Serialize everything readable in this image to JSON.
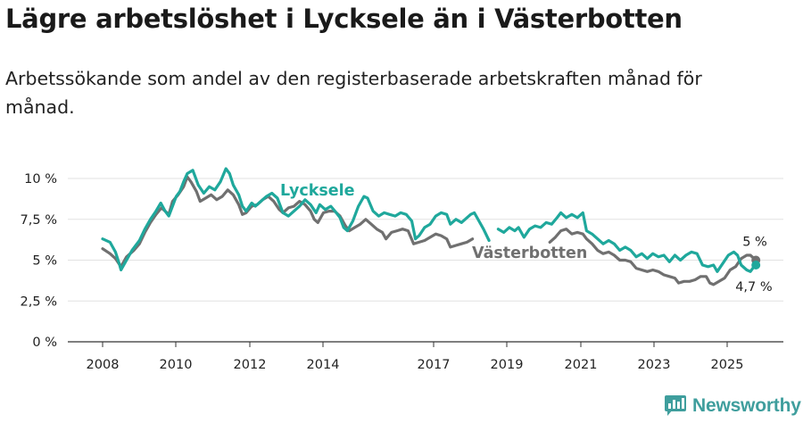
{
  "header": {
    "title": "Lägre arbetslöshet i Lycksele än i Västerbotten",
    "subtitle": "Arbetssökande som andel av den registerbaserade arbetskraften månad för månad."
  },
  "brand": {
    "name": "Newsworthy"
  },
  "chart_data": {
    "type": "line",
    "title": "Lägre arbetslöshet i Lycksele än i Västerbotten",
    "subtitle": "Arbetssökande som andel av den registerbaserade arbetskraften månad för månad.",
    "xlabel": "",
    "ylabel": "",
    "ylim": [
      0,
      10
    ],
    "xlim": [
      2007.6,
      2026.65
    ],
    "y_ticks": [
      0,
      2.5,
      5,
      7.5,
      10
    ],
    "y_tick_labels": [
      "0 %",
      "2,5 %",
      "5 %",
      "7,5 %",
      "10 %"
    ],
    "x_tick_labels": [
      "2008",
      "2010",
      "2012",
      "2014",
      "2017",
      "2019",
      "2021",
      "2023",
      "2025"
    ],
    "grid": "horizontal",
    "series": [
      {
        "name": "Lycksele",
        "label": "Lycksele",
        "color": "#1fa89c",
        "end_label": "4,7 %",
        "points": [
          [
            2008.0,
            6.3
          ],
          [
            2008.2,
            6.1
          ],
          [
            2008.35,
            5.5
          ],
          [
            2008.45,
            4.8
          ],
          [
            2008.5,
            4.4
          ],
          [
            2008.6,
            4.8
          ],
          [
            2008.8,
            5.6
          ],
          [
            2009.0,
            6.2
          ],
          [
            2009.15,
            6.9
          ],
          [
            2009.3,
            7.5
          ],
          [
            2009.45,
            8.0
          ],
          [
            2009.58,
            8.5
          ],
          [
            2009.7,
            8.0
          ],
          [
            2009.8,
            7.7
          ],
          [
            2009.9,
            8.3
          ],
          [
            2010.0,
            8.9
          ],
          [
            2010.1,
            9.2
          ],
          [
            2010.2,
            9.8
          ],
          [
            2010.3,
            10.3
          ],
          [
            2010.45,
            10.5
          ],
          [
            2010.6,
            9.6
          ],
          [
            2010.75,
            9.1
          ],
          [
            2010.9,
            9.5
          ],
          [
            2011.05,
            9.3
          ],
          [
            2011.2,
            9.8
          ],
          [
            2011.35,
            10.6
          ],
          [
            2011.45,
            10.3
          ],
          [
            2011.55,
            9.6
          ],
          [
            2011.7,
            9.0
          ],
          [
            2011.8,
            8.3
          ],
          [
            2011.9,
            8.0
          ],
          [
            2012.05,
            8.5
          ],
          [
            2012.15,
            8.3
          ],
          [
            2012.3,
            8.6
          ],
          [
            2012.45,
            8.9
          ],
          [
            2012.6,
            9.1
          ],
          [
            2012.75,
            8.8
          ],
          [
            2012.9,
            7.9
          ],
          [
            2013.05,
            7.7
          ],
          [
            2013.2,
            8.0
          ],
          [
            2013.35,
            8.3
          ],
          [
            2013.5,
            8.7
          ],
          [
            2013.65,
            8.4
          ],
          [
            2013.8,
            7.9
          ],
          [
            2013.9,
            8.4
          ],
          [
            2014.05,
            8.1
          ],
          [
            2014.2,
            8.3
          ],
          [
            2014.35,
            7.9
          ],
          [
            2014.45,
            7.6
          ],
          [
            2014.55,
            7.0
          ],
          [
            2014.65,
            6.8
          ],
          [
            2014.8,
            7.4
          ],
          [
            2014.95,
            8.3
          ],
          [
            2015.1,
            8.9
          ],
          [
            2015.2,
            8.8
          ],
          [
            2015.35,
            8.0
          ],
          [
            2015.5,
            7.7
          ],
          [
            2015.65,
            7.9
          ],
          [
            2015.8,
            7.8
          ],
          [
            2015.95,
            7.7
          ],
          [
            2016.1,
            7.9
          ],
          [
            2016.25,
            7.8
          ],
          [
            2016.4,
            7.4
          ],
          [
            2016.5,
            6.3
          ],
          [
            2016.6,
            6.5
          ],
          [
            2016.75,
            7.0
          ],
          [
            2016.9,
            7.2
          ],
          [
            2017.05,
            7.7
          ],
          [
            2017.2,
            7.9
          ],
          [
            2017.35,
            7.8
          ],
          [
            2017.45,
            7.2
          ],
          [
            2017.6,
            7.5
          ],
          [
            2017.75,
            7.3
          ],
          [
            2017.9,
            7.6
          ],
          [
            2018.0,
            7.8
          ],
          [
            2018.1,
            7.9
          ],
          [
            2018.25,
            7.3
          ],
          [
            2018.35,
            6.9
          ],
          [
            2018.5,
            6.2
          ],
          [
            null,
            null
          ],
          [
            2018.75,
            6.9
          ],
          [
            2018.9,
            6.7
          ],
          [
            2019.05,
            7.0
          ],
          [
            2019.2,
            6.8
          ],
          [
            2019.3,
            7.0
          ],
          [
            2019.45,
            6.4
          ],
          [
            2019.6,
            6.9
          ],
          [
            2019.75,
            7.1
          ],
          [
            2019.9,
            7.0
          ],
          [
            2020.05,
            7.3
          ],
          [
            2020.2,
            7.2
          ],
          [
            2020.35,
            7.6
          ],
          [
            2020.45,
            7.9
          ],
          [
            2020.6,
            7.6
          ],
          [
            2020.75,
            7.8
          ],
          [
            2020.9,
            7.6
          ],
          [
            2021.05,
            7.9
          ],
          [
            2021.15,
            6.8
          ],
          [
            2021.3,
            6.6
          ],
          [
            2021.45,
            6.3
          ],
          [
            2021.6,
            6.0
          ],
          [
            2021.75,
            6.2
          ],
          [
            2021.9,
            6.0
          ],
          [
            2022.05,
            5.6
          ],
          [
            2022.2,
            5.8
          ],
          [
            2022.35,
            5.6
          ],
          [
            2022.5,
            5.2
          ],
          [
            2022.65,
            5.4
          ],
          [
            2022.8,
            5.1
          ],
          [
            2022.95,
            5.4
          ],
          [
            2023.1,
            5.2
          ],
          [
            2023.25,
            5.3
          ],
          [
            2023.4,
            4.9
          ],
          [
            2023.55,
            5.3
          ],
          [
            2023.7,
            5.0
          ],
          [
            2023.85,
            5.3
          ],
          [
            2024.0,
            5.5
          ],
          [
            2024.15,
            5.4
          ],
          [
            2024.3,
            4.7
          ],
          [
            2024.45,
            4.6
          ],
          [
            2024.6,
            4.7
          ],
          [
            2024.7,
            4.3
          ],
          [
            2024.85,
            4.8
          ],
          [
            2025.0,
            5.3
          ],
          [
            2025.15,
            5.5
          ],
          [
            2025.25,
            5.3
          ],
          [
            2025.35,
            4.7
          ],
          [
            2025.5,
            4.4
          ],
          [
            2025.6,
            4.3
          ],
          [
            2025.7,
            4.6
          ],
          [
            2025.75,
            4.7
          ]
        ]
      },
      {
        "name": "Västerbotten",
        "label": "Västerbotten",
        "color": "#707070",
        "end_label": "5 %",
        "points": [
          [
            2008.0,
            5.7
          ],
          [
            2008.2,
            5.4
          ],
          [
            2008.35,
            5.1
          ],
          [
            2008.5,
            4.6
          ],
          [
            2008.65,
            5.2
          ],
          [
            2008.85,
            5.6
          ],
          [
            2009.0,
            6.0
          ],
          [
            2009.15,
            6.7
          ],
          [
            2009.3,
            7.3
          ],
          [
            2009.45,
            7.8
          ],
          [
            2009.6,
            8.2
          ],
          [
            2009.8,
            7.8
          ],
          [
            2009.9,
            8.6
          ],
          [
            2010.05,
            9.0
          ],
          [
            2010.2,
            9.5
          ],
          [
            2010.3,
            10.1
          ],
          [
            2010.4,
            9.8
          ],
          [
            2010.55,
            9.2
          ],
          [
            2010.65,
            8.6
          ],
          [
            2010.8,
            8.8
          ],
          [
            2010.95,
            9.0
          ],
          [
            2011.1,
            8.7
          ],
          [
            2011.25,
            8.9
          ],
          [
            2011.4,
            9.3
          ],
          [
            2011.55,
            9.0
          ],
          [
            2011.7,
            8.4
          ],
          [
            2011.8,
            7.8
          ],
          [
            2011.9,
            7.9
          ],
          [
            2012.05,
            8.3
          ],
          [
            2012.2,
            8.4
          ],
          [
            2012.35,
            8.7
          ],
          [
            2012.5,
            8.9
          ],
          [
            2012.65,
            8.6
          ],
          [
            2012.8,
            8.1
          ],
          [
            2012.9,
            7.9
          ],
          [
            2013.05,
            8.2
          ],
          [
            2013.2,
            8.3
          ],
          [
            2013.35,
            8.6
          ],
          [
            2013.5,
            8.4
          ],
          [
            2013.65,
            8.0
          ],
          [
            2013.75,
            7.5
          ],
          [
            2013.85,
            7.3
          ],
          [
            2014.0,
            7.9
          ],
          [
            2014.15,
            8.0
          ],
          [
            2014.3,
            8.0
          ],
          [
            2014.45,
            7.7
          ],
          [
            2014.6,
            7.1
          ],
          [
            2014.7,
            6.8
          ],
          [
            2014.85,
            7.0
          ],
          [
            2015.0,
            7.2
          ],
          [
            2015.15,
            7.5
          ],
          [
            2015.3,
            7.2
          ],
          [
            2015.45,
            6.9
          ],
          [
            2015.6,
            6.7
          ],
          [
            2015.7,
            6.3
          ],
          [
            2015.85,
            6.7
          ],
          [
            2016.0,
            6.8
          ],
          [
            2016.15,
            6.9
          ],
          [
            2016.3,
            6.8
          ],
          [
            2016.45,
            6.0
          ],
          [
            2016.6,
            6.1
          ],
          [
            2016.75,
            6.2
          ],
          [
            2016.9,
            6.4
          ],
          [
            2017.05,
            6.6
          ],
          [
            2017.2,
            6.5
          ],
          [
            2017.35,
            6.3
          ],
          [
            2017.45,
            5.8
          ],
          [
            2017.6,
            5.9
          ],
          [
            2017.75,
            6.0
          ],
          [
            2017.9,
            6.1
          ],
          [
            2018.05,
            6.3
          ],
          [
            null,
            null
          ],
          [
            2020.15,
            6.1
          ],
          [
            2020.3,
            6.4
          ],
          [
            2020.45,
            6.8
          ],
          [
            2020.6,
            6.9
          ],
          [
            2020.75,
            6.6
          ],
          [
            2020.9,
            6.7
          ],
          [
            2021.05,
            6.6
          ],
          [
            2021.15,
            6.3
          ],
          [
            2021.3,
            6.0
          ],
          [
            2021.45,
            5.6
          ],
          [
            2021.6,
            5.4
          ],
          [
            2021.75,
            5.5
          ],
          [
            2021.9,
            5.3
          ],
          [
            2022.05,
            5.0
          ],
          [
            2022.2,
            5.0
          ],
          [
            2022.35,
            4.9
          ],
          [
            2022.5,
            4.5
          ],
          [
            2022.65,
            4.4
          ],
          [
            2022.8,
            4.3
          ],
          [
            2022.95,
            4.4
          ],
          [
            2023.1,
            4.3
          ],
          [
            2023.25,
            4.1
          ],
          [
            2023.4,
            4.0
          ],
          [
            2023.55,
            3.9
          ],
          [
            2023.65,
            3.6
          ],
          [
            2023.8,
            3.7
          ],
          [
            2023.95,
            3.7
          ],
          [
            2024.1,
            3.8
          ],
          [
            2024.25,
            4.0
          ],
          [
            2024.4,
            4.0
          ],
          [
            2024.5,
            3.6
          ],
          [
            2024.6,
            3.5
          ],
          [
            2024.75,
            3.7
          ],
          [
            2024.9,
            3.9
          ],
          [
            2025.05,
            4.4
          ],
          [
            2025.2,
            4.6
          ],
          [
            2025.35,
            5.1
          ],
          [
            2025.5,
            5.3
          ],
          [
            2025.6,
            5.3
          ],
          [
            2025.75,
            5.0
          ]
        ]
      }
    ]
  }
}
